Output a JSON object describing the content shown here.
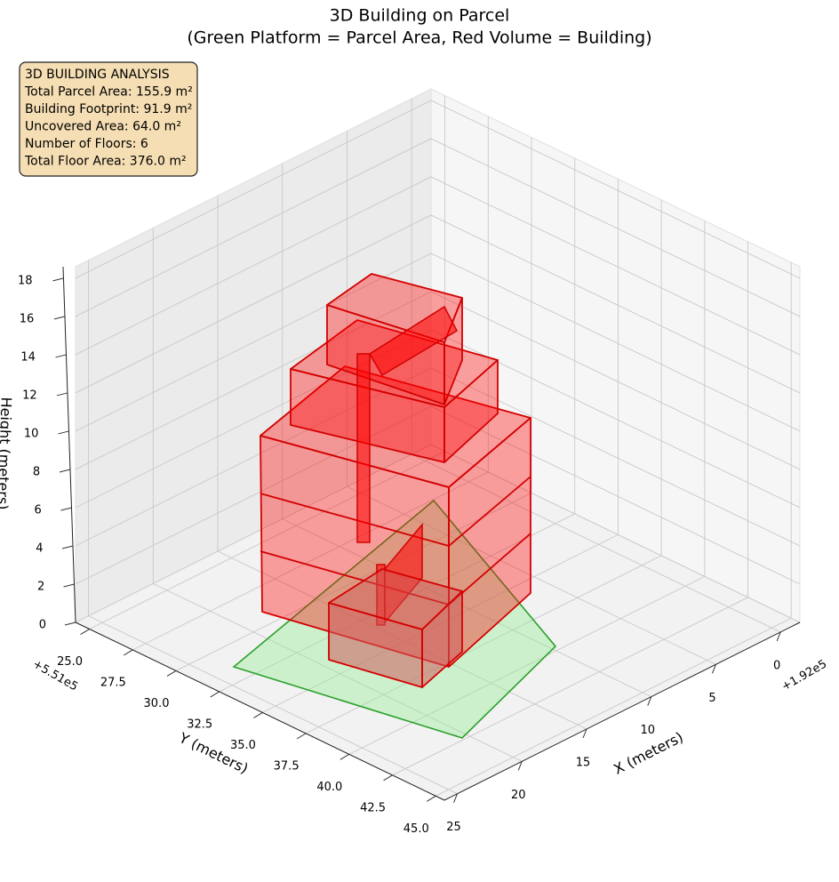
{
  "chart_data": {
    "type": "3d",
    "title": "3D Building on Parcel",
    "subtitle": "(Green Platform = Parcel Area, Red Volume = Building)",
    "annotation": [
      "3D BUILDING ANALYSIS",
      "Total Parcel Area: 155.9 m²",
      "Building Footprint: 91.9 m²",
      "Uncovered Area: 64.0 m²",
      "Number of Floors: 6",
      "Total Floor Area: 376.0 m²"
    ],
    "xlabel": "X (meters)",
    "ylabel": "Y (meters)",
    "zlabel": "Height (meters)",
    "x_offset": "+1.92e5",
    "y_offset": "+5.51e5",
    "xlim": [
      -1.5,
      26
    ],
    "ylim": [
      24.2,
      45.5
    ],
    "zlim": [
      0,
      18.6
    ],
    "xticks": [
      0,
      5,
      10,
      15,
      20,
      25
    ],
    "yticks": [
      {
        "value": 25,
        "label": "25.0"
      },
      {
        "value": 27.5,
        "label": "27.5"
      },
      {
        "value": 30,
        "label": "30.0"
      },
      {
        "value": 32.5,
        "label": "32.5"
      },
      {
        "value": 35,
        "label": "35.0"
      },
      {
        "value": 37.5,
        "label": "37.5"
      },
      {
        "value": 40,
        "label": "40.0"
      },
      {
        "value": 42.5,
        "label": "42.5"
      },
      {
        "value": 45,
        "label": "45.0"
      }
    ],
    "zticks": [
      0,
      2,
      4,
      6,
      8,
      10,
      12,
      14,
      16,
      18
    ],
    "grid": true
  }
}
